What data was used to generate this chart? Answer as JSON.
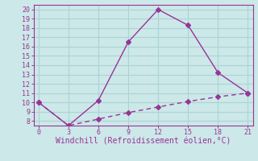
{
  "x_solid": [
    0,
    3,
    6,
    9,
    12,
    15,
    18,
    21
  ],
  "y_solid": [
    10,
    7.5,
    10.2,
    16.5,
    20,
    18.3,
    13.2,
    11
  ],
  "x_dashed": [
    0,
    3,
    6,
    9,
    12,
    15,
    18,
    21
  ],
  "y_dashed": [
    10,
    7.5,
    8.2,
    8.9,
    9.5,
    10.1,
    10.6,
    11
  ],
  "line_color": "#993399",
  "bg_color": "#cce8e8",
  "grid_color": "#aad4d4",
  "xlabel": "Windchill (Refroidissement éolien,°C)",
  "xlabel_color": "#993399",
  "tick_color": "#993399",
  "xlim": [
    -0.5,
    21.5
  ],
  "ylim": [
    7.5,
    20.5
  ],
  "xticks": [
    0,
    3,
    6,
    9,
    12,
    15,
    18,
    21
  ],
  "yticks": [
    8,
    9,
    10,
    11,
    12,
    13,
    14,
    15,
    16,
    17,
    18,
    19,
    20
  ],
  "marker": "D",
  "marker_size": 3,
  "line_width": 1.0,
  "font_size_ticks": 6,
  "font_size_xlabel": 7
}
